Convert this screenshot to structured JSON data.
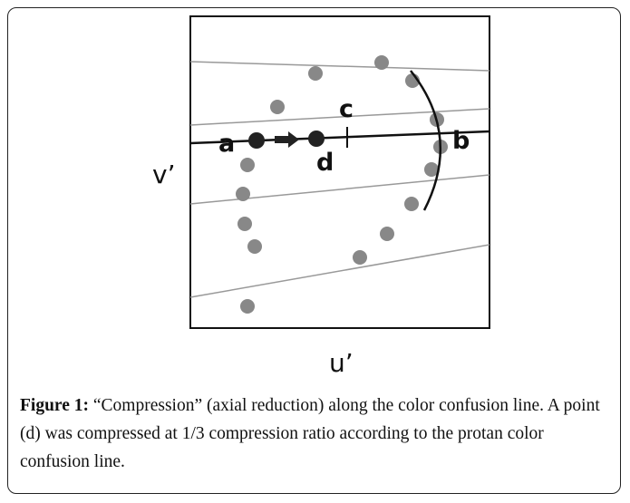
{
  "figure": {
    "labels": {
      "a": "a",
      "b": "b",
      "c": "c",
      "d": "d"
    },
    "y_axis": "v’",
    "x_axis": "u’"
  },
  "caption": {
    "label": "Figure 1:",
    "text": " “Compression” (axial reduction) along the color confusion line. A point (d) was compressed at 1/3 compression ratio according to the protan color confusion line."
  }
}
